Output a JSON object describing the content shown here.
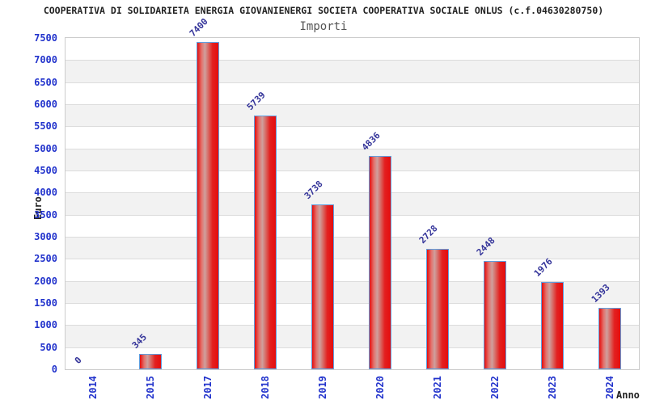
{
  "header": {
    "title": "COOPERATIVA DI SOLIDARIETA ENERGIA GIOVANIENERGI SOCIETA COOPERATIVA SOCIALE ONLUS (c.f.04630280750)"
  },
  "chart_data": {
    "type": "bar",
    "title": "Importi",
    "xlabel": "Anno",
    "ylabel": "Euro",
    "categories": [
      "2014",
      "2015",
      "2017",
      "2018",
      "2019",
      "2020",
      "2021",
      "2022",
      "2023",
      "2024"
    ],
    "values": [
      0,
      345,
      7400,
      5739,
      3738,
      4836,
      2728,
      2448,
      1976,
      1393
    ],
    "value_labels": [
      "0",
      "345",
      "7400",
      "5739",
      "3738",
      "4836",
      "2728",
      "2448",
      "1976",
      "1393"
    ],
    "ylim": [
      0,
      7500
    ],
    "ytick_step": 500,
    "grid": "horizontal alternating bands every 500, light gridlines",
    "legend_position": "none"
  },
  "colors": {
    "background": "#ffffff",
    "title_text": "#222222",
    "subtitle_text": "#555555",
    "axis_title_text": "#222222",
    "axis_tick_label": "#2233cc",
    "value_label": "#333399",
    "bar_fill_main": "#e50d0d",
    "bar_fill_highlight": "#cfa09e",
    "bar_border": "#5e9fe0",
    "band_alt": "#f2f2f2",
    "grid_line": "#dcdcdc",
    "plot_border": "#cccccc"
  }
}
